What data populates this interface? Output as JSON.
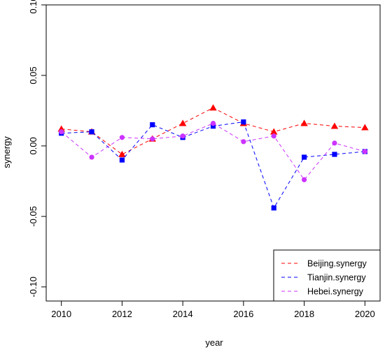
{
  "chart_data": {
    "type": "line",
    "title": "",
    "xlabel": "year",
    "ylabel": "synergy",
    "xlim": [
      2009.5,
      2020.5
    ],
    "ylim": [
      -0.11,
      0.1
    ],
    "x_ticks": [
      "2010",
      "2012",
      "2014",
      "2016",
      "2018",
      "2020"
    ],
    "y_ticks": [
      "-0.10",
      "-0.05",
      "0.00",
      "0.05",
      "0.10"
    ],
    "legend_position": "bottom-right",
    "x": [
      2010,
      2011,
      2012,
      2013,
      2014,
      2015,
      2016,
      2017,
      2018,
      2019,
      2020
    ],
    "series": [
      {
        "name": "Beijing.synergy",
        "color": "#ff0000",
        "marker": "triangle",
        "values": [
          0.012,
          0.01,
          -0.006,
          0.005,
          0.016,
          0.027,
          0.016,
          0.01,
          0.016,
          0.014,
          0.013
        ]
      },
      {
        "name": "Tianjin.synergy",
        "color": "#0000ff",
        "marker": "square",
        "values": [
          0.009,
          0.01,
          -0.01,
          0.015,
          0.006,
          0.014,
          0.017,
          -0.044,
          -0.008,
          -0.006,
          -0.004
        ]
      },
      {
        "name": "Hebei.synergy",
        "color": "#cc33ff",
        "marker": "circle",
        "values": [
          0.01,
          -0.008,
          0.006,
          0.005,
          0.007,
          0.016,
          0.003,
          0.007,
          -0.024,
          0.002,
          -0.004
        ]
      }
    ]
  }
}
